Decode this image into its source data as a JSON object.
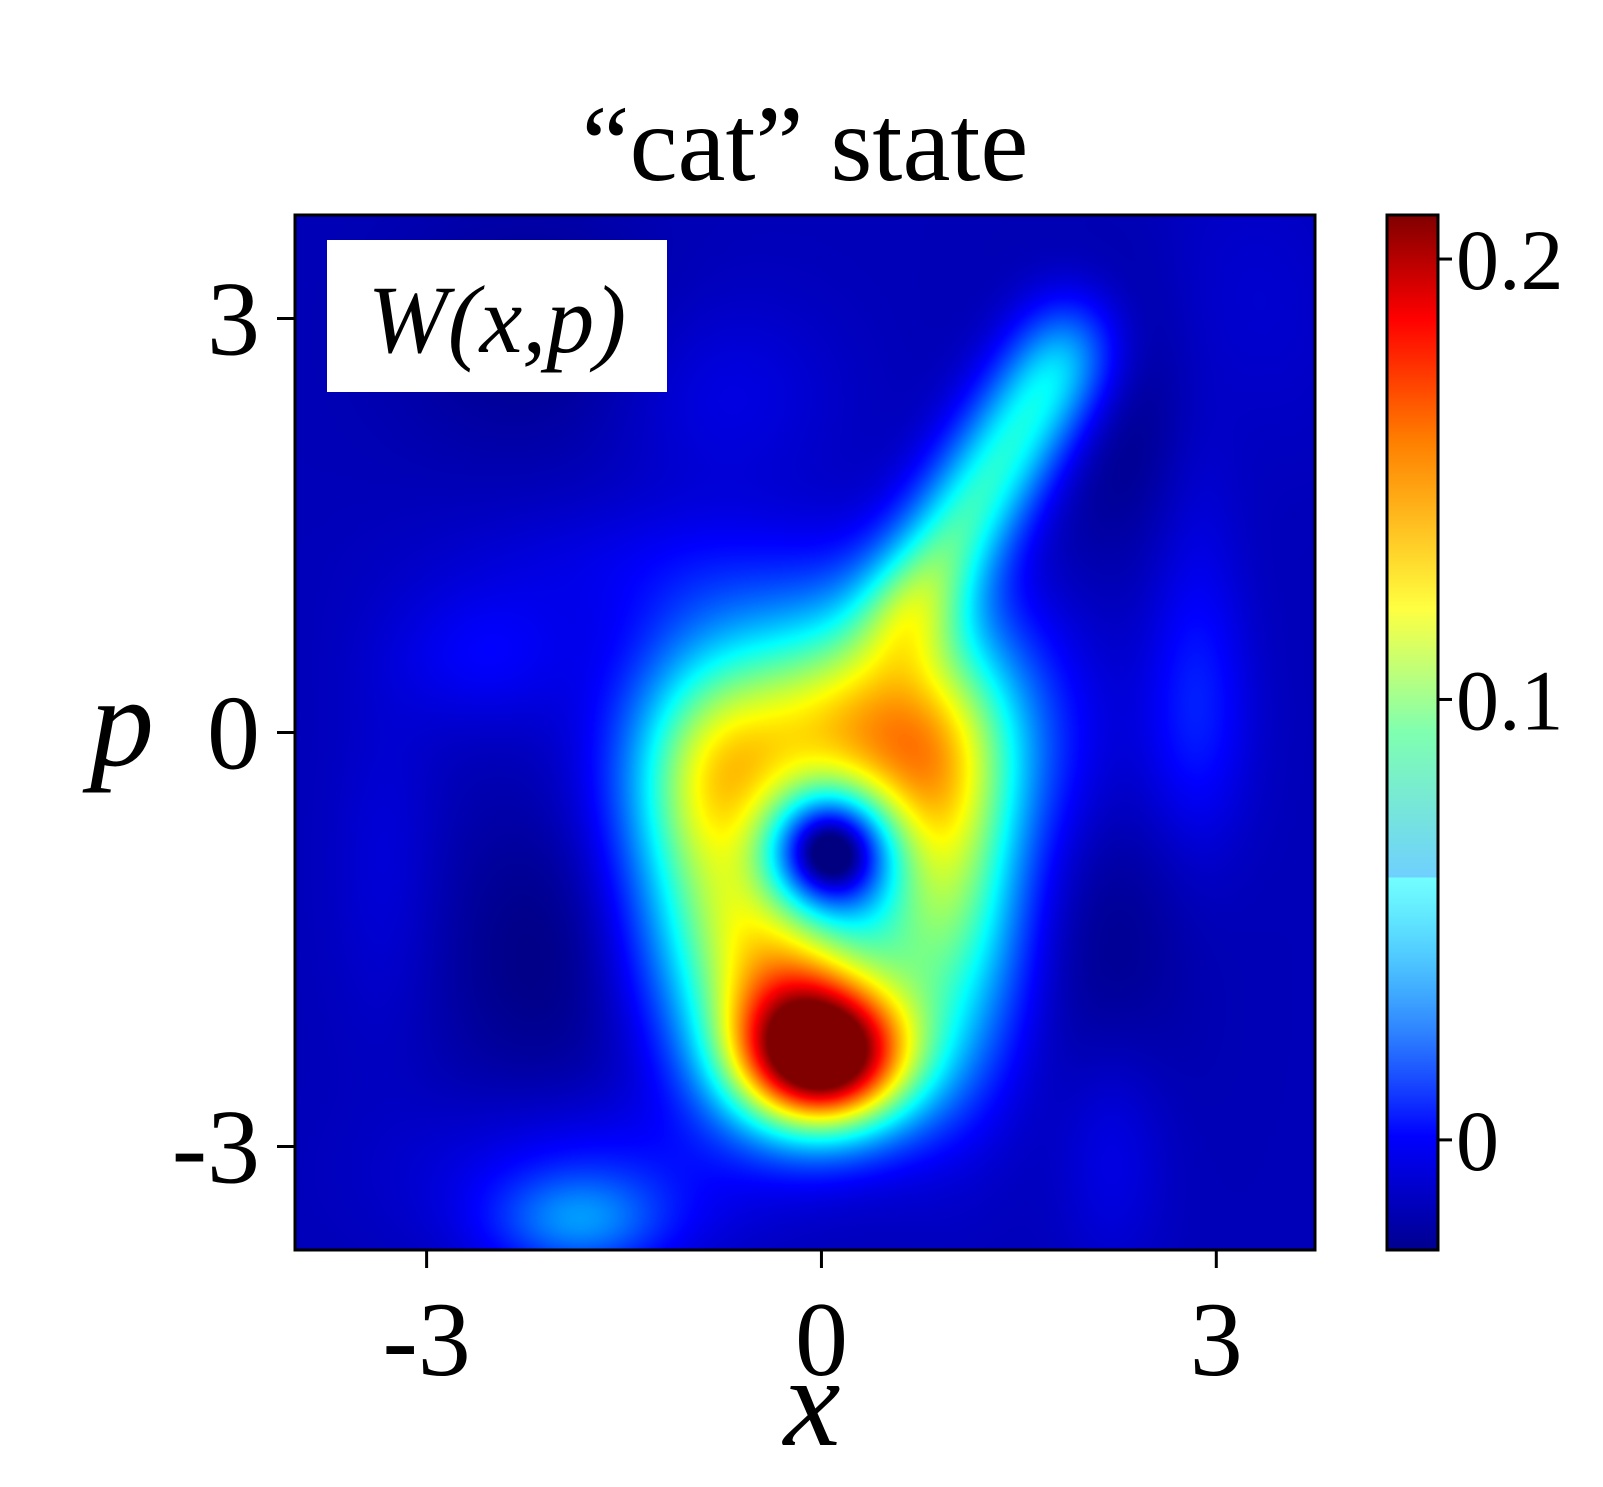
{
  "chart_data": {
    "type": "heatmap",
    "title": "“cat” state",
    "inset_label": "W(x,p)",
    "xlabel": "x",
    "ylabel": "p",
    "xlim": [
      -4.0,
      3.75
    ],
    "ylim": [
      -3.75,
      3.75
    ],
    "x_ticks": [
      -3,
      0,
      3
    ],
    "x_tick_labels": [
      "-3",
      "0",
      "3"
    ],
    "y_ticks": [
      -3,
      0,
      3
    ],
    "y_tick_labels": [
      "-3",
      "0",
      "3"
    ],
    "colormap": "jet",
    "colorbar": {
      "vmin": -0.025,
      "vmax": 0.21,
      "ticks": [
        0,
        0.1,
        0.2
      ],
      "tick_labels": [
        "0",
        "0.1",
        "0.2"
      ]
    },
    "z_features": [
      {
        "kind": "peak",
        "x": 0.0,
        "p": -2.35,
        "value": 0.21
      },
      {
        "kind": "ring",
        "x": 0.1,
        "p": -0.85,
        "value": 0.1
      },
      {
        "kind": "lobe",
        "x": 0.35,
        "p": 0.3,
        "value": 0.11
      },
      {
        "kind": "hole",
        "x": 0.05,
        "p": -0.85,
        "value": -0.02
      },
      {
        "kind": "ridge",
        "x": 1.4,
        "p": 2.0,
        "value": 0.035
      },
      {
        "kind": "blob",
        "x": -1.85,
        "p": -3.55,
        "value": 0.04
      },
      {
        "kind": "blob",
        "x": -2.55,
        "p": 0.5,
        "value": 0.01
      },
      {
        "kind": "blob",
        "x": 2.85,
        "p": 0.1,
        "value": 0.01
      },
      {
        "kind": "blob",
        "x": -0.75,
        "p": 2.45,
        "value": 0.005
      }
    ]
  }
}
